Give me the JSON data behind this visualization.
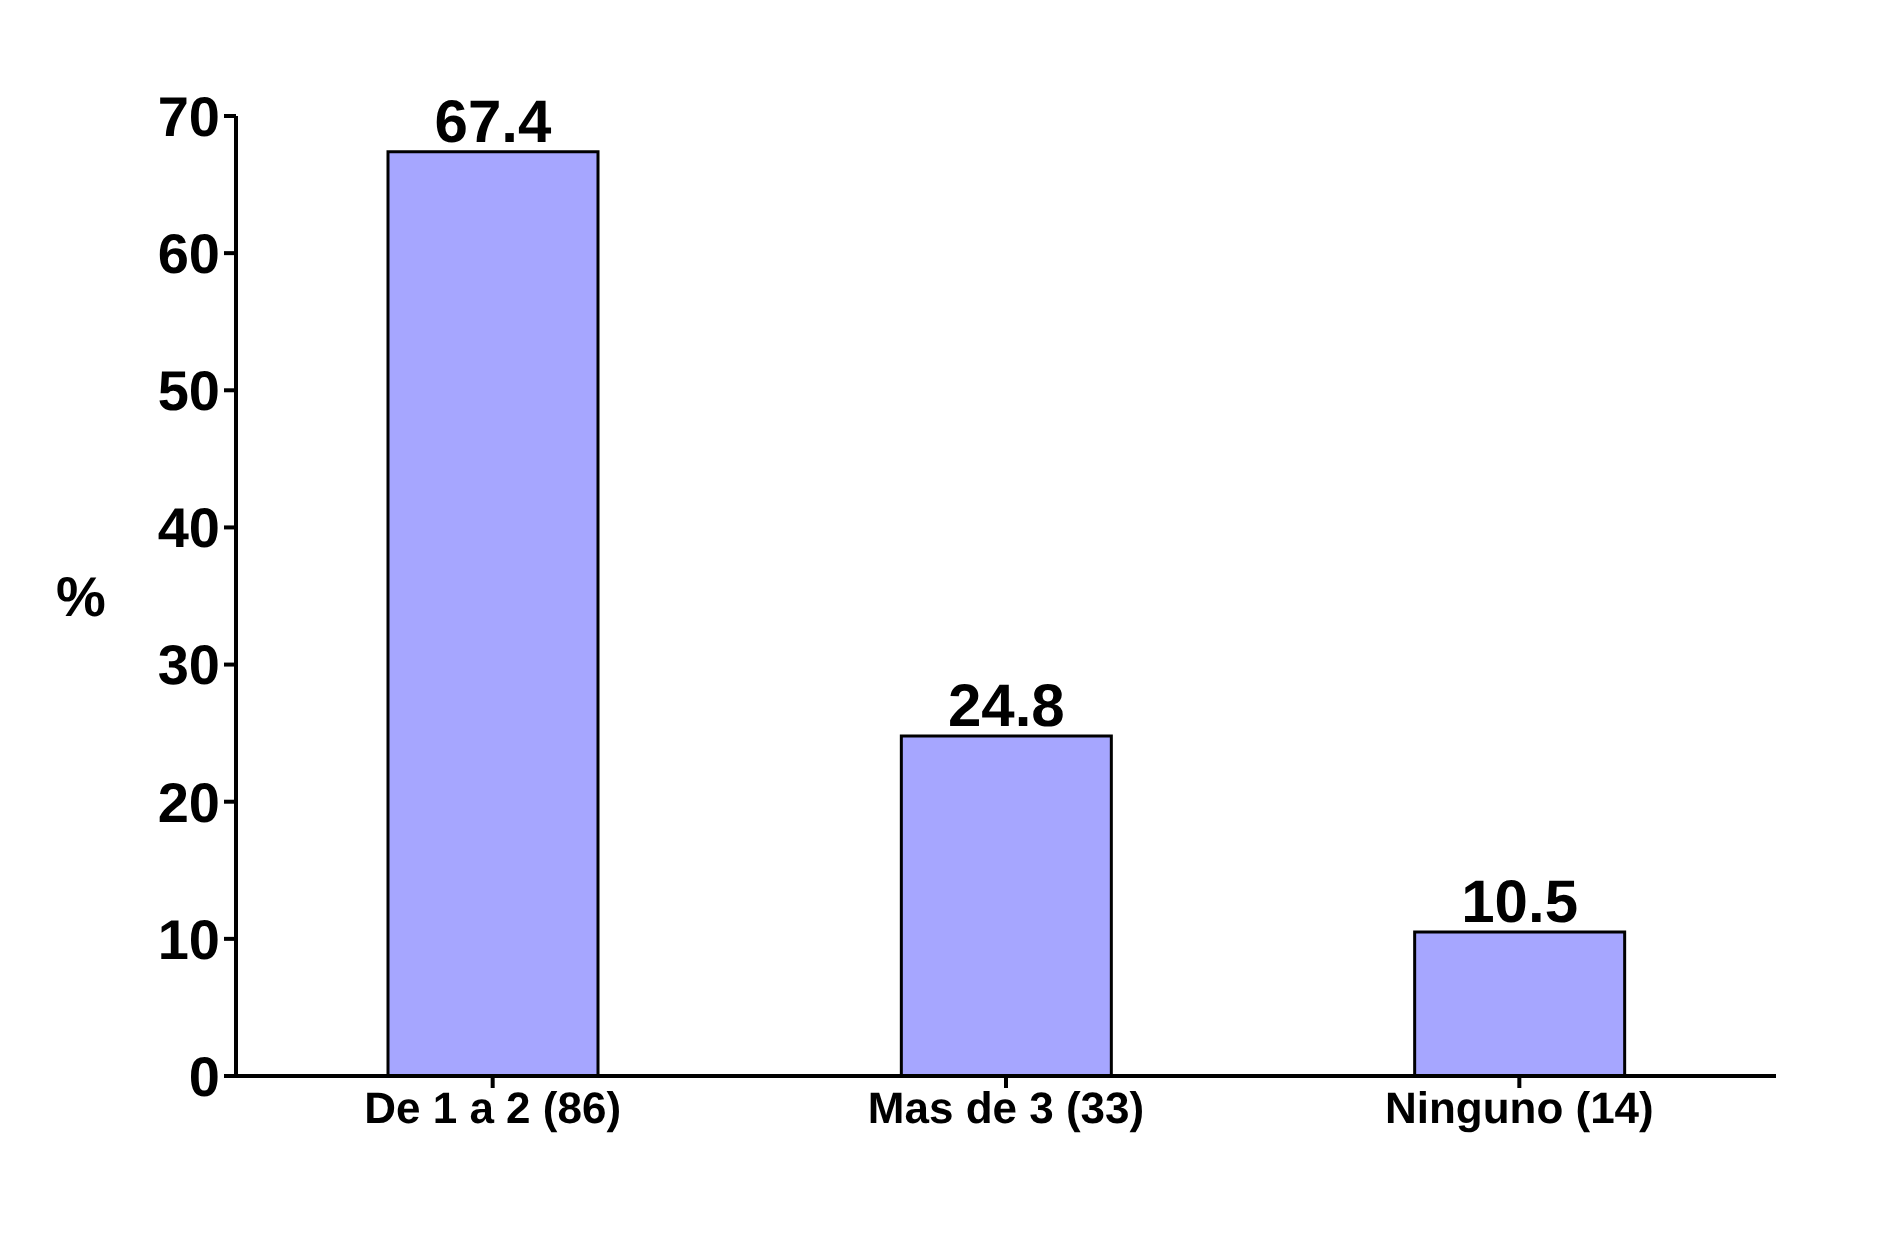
{
  "chart_data": {
    "type": "bar",
    "ylabel": "%",
    "categories": [
      "De 1 a 2 (86)",
      "Mas de 3 (33)",
      "Ninguno (14)"
    ],
    "values": [
      67.4,
      24.8,
      10.5
    ],
    "color": "#a6a6ff",
    "ylim": [
      0,
      70
    ],
    "yticks": [
      0,
      10,
      20,
      30,
      40,
      50,
      60,
      70
    ],
    "grid": false,
    "data_labels": true
  }
}
